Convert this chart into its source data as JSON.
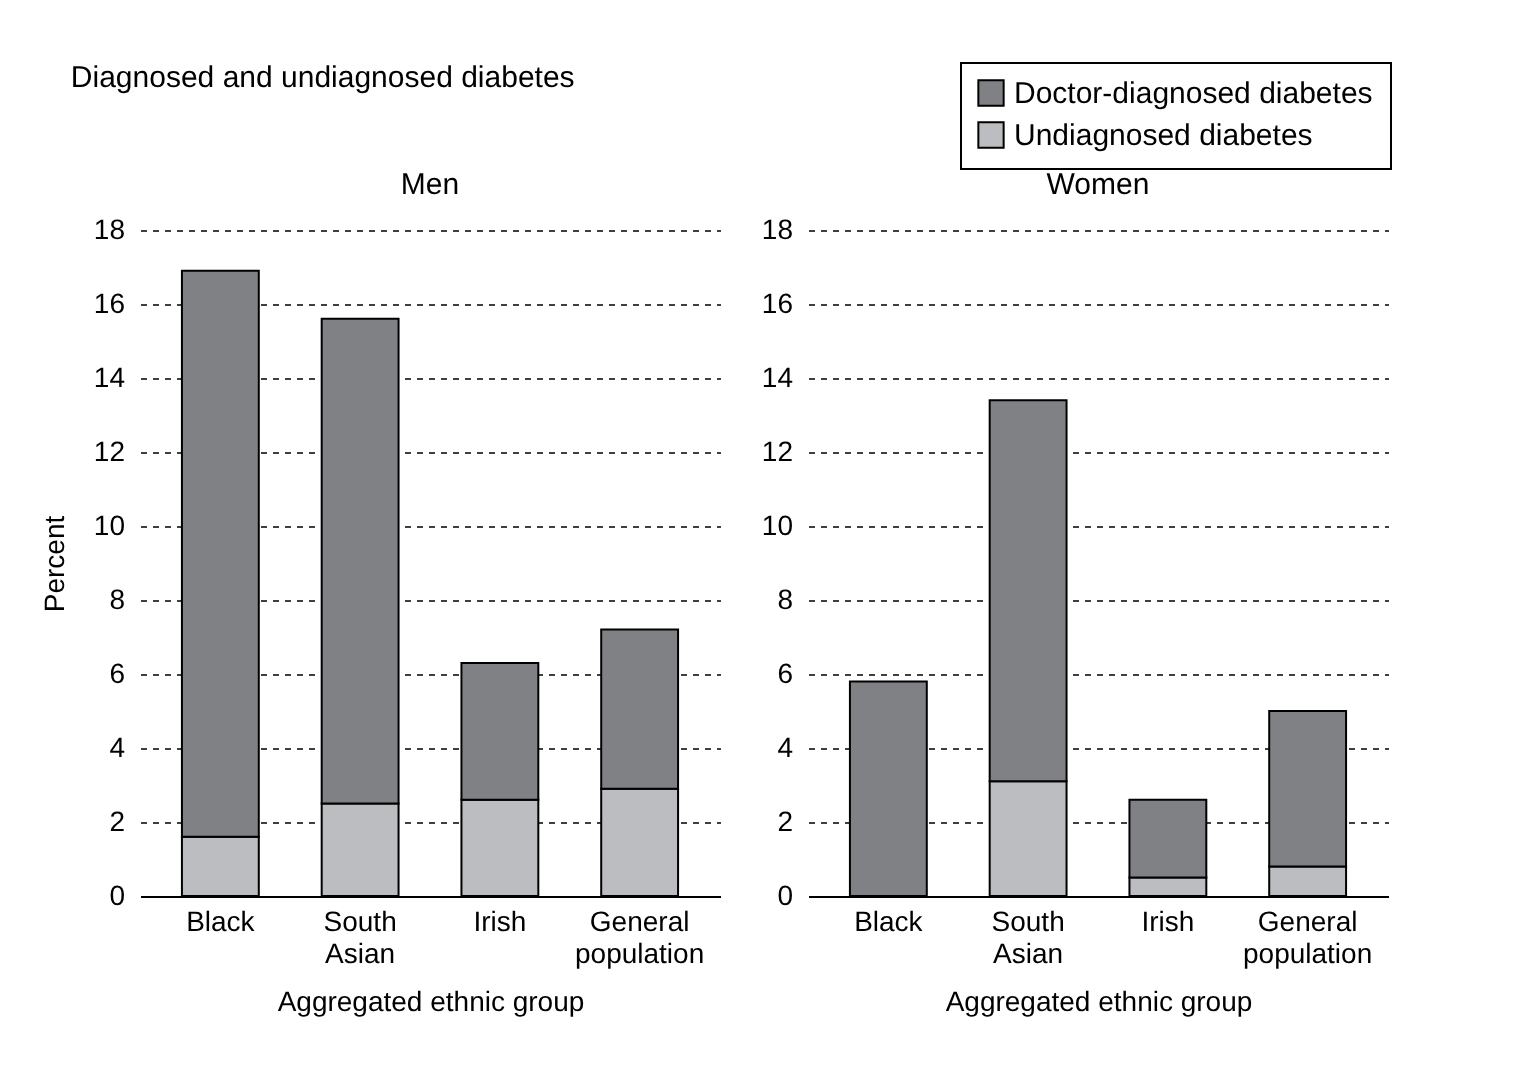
{
  "chart_data": [
    {
      "type": "bar",
      "title": "Men",
      "annotations": [
        "Diagnosed and undiagnosed diabetes"
      ],
      "xlabel": "Aggregated ethnic group",
      "ylabel": "Percent",
      "categories": [
        "Black",
        "South Asian",
        "Irish",
        "General population"
      ],
      "stacked": true,
      "ylim": [
        0,
        18
      ],
      "yticks": [
        0,
        2,
        4,
        6,
        8,
        10,
        12,
        14,
        16,
        18
      ],
      "grid": "y",
      "legend": "top right",
      "series": [
        {
          "name": "Undiagnosed diabetes",
          "color": "#bcbdc1",
          "values": [
            1.6,
            2.5,
            2.6,
            2.9
          ]
        },
        {
          "name": "Doctor-diagnosed diabetes",
          "color": "#808185",
          "values": [
            15.3,
            13.1,
            3.7,
            4.3
          ]
        }
      ]
    },
    {
      "type": "bar",
      "title": "Women",
      "xlabel": "Aggregated ethnic group",
      "categories": [
        "Black",
        "South Asian",
        "Irish",
        "General population"
      ],
      "stacked": true,
      "ylim": [
        0,
        18
      ],
      "yticks": [
        0,
        2,
        4,
        6,
        8,
        10,
        12,
        14,
        16,
        18
      ],
      "grid": "y",
      "legend": false,
      "series": [
        {
          "color": "#bcbdc1",
          "values": [
            0,
            3.1,
            0.5,
            0.8
          ]
        },
        {
          "color": "#808185",
          "values": [
            5.8,
            10.3,
            2.1,
            4.2
          ]
        }
      ]
    }
  ]
}
